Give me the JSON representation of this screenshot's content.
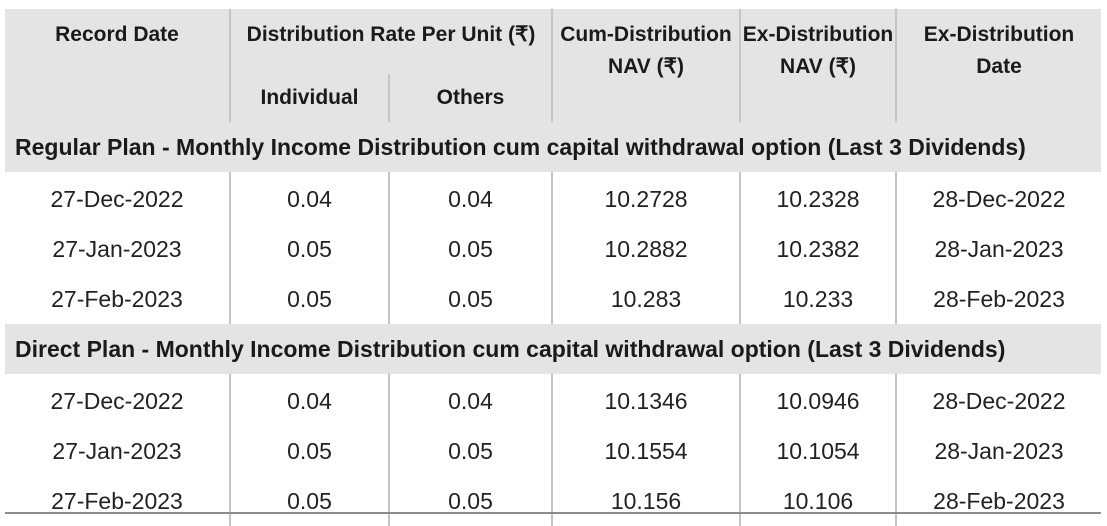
{
  "headers": {
    "record_date": "Record Date",
    "distribution_rate": "Distribution Rate Per Unit  (₹)",
    "individual": "Individual",
    "others": "Others",
    "cum_nav_line1": "Cum-Distribution",
    "cum_nav_line2": "NAV (₹)",
    "ex_nav_line1": "Ex-Distribution",
    "ex_nav_line2": "NAV (₹)",
    "ex_date_line1": "Ex-Distribution",
    "ex_date_line2": "Date"
  },
  "sections": [
    {
      "title": "Regular Plan - Monthly Income Distribution cum capital withdrawal option (Last 3 Dividends)",
      "rows": [
        {
          "record_date": "27-Dec-2022",
          "individual": "0.04",
          "others": "0.04",
          "cum_nav": "10.2728",
          "ex_nav": "10.2328",
          "ex_date": "28-Dec-2022"
        },
        {
          "record_date": "27-Jan-2023",
          "individual": "0.05",
          "others": "0.05",
          "cum_nav": "10.2882",
          "ex_nav": "10.2382",
          "ex_date": "28-Jan-2023"
        },
        {
          "record_date": "27-Feb-2023",
          "individual": "0.05",
          "others": "0.05",
          "cum_nav": "10.283",
          "ex_nav": "10.233",
          "ex_date": "28-Feb-2023"
        }
      ]
    },
    {
      "title": "Direct Plan - Monthly Income Distribution cum capital withdrawal option (Last 3 Dividends)",
      "rows": [
        {
          "record_date": "27-Dec-2022",
          "individual": "0.04",
          "others": "0.04",
          "cum_nav": "10.1346",
          "ex_nav": "10.0946",
          "ex_date": "28-Dec-2022"
        },
        {
          "record_date": "27-Jan-2023",
          "individual": "0.05",
          "others": "0.05",
          "cum_nav": "10.1554",
          "ex_nav": "10.1054",
          "ex_date": "28-Jan-2023"
        },
        {
          "record_date": "27-Feb-2023",
          "individual": "0.05",
          "others": "0.05",
          "cum_nav": "10.156",
          "ex_nav": "10.106",
          "ex_date": "28-Feb-2023"
        }
      ]
    }
  ]
}
